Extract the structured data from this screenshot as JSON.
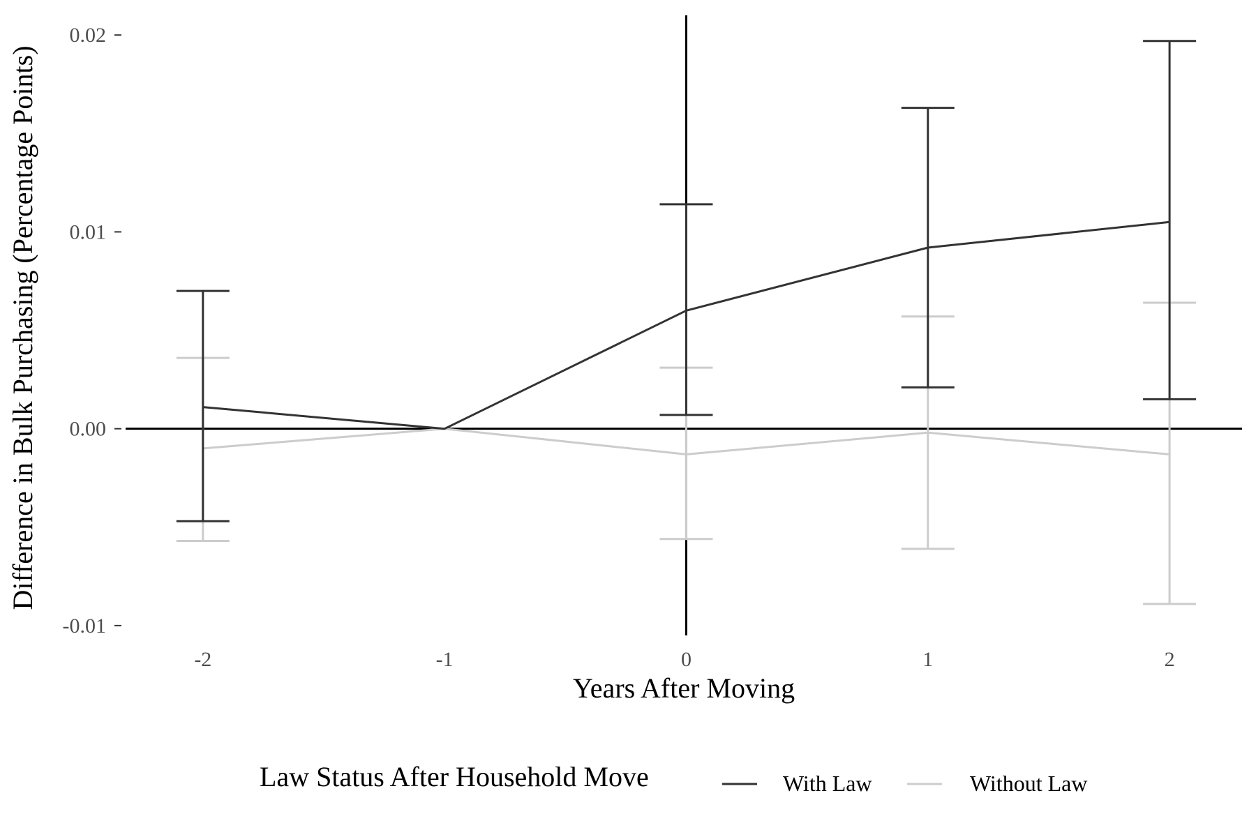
{
  "chart_data": {
    "type": "line",
    "title": "",
    "xlabel": "Years After Moving",
    "ylabel": "Difference in Bulk Purchasing (Percentage Points)",
    "x": [
      -2,
      -1,
      0,
      1,
      2
    ],
    "x_ticks": [
      "-2",
      "-1",
      "0",
      "1",
      "2"
    ],
    "xlim": [
      -2.32,
      2.3
    ],
    "y_ticks": [
      {
        "value": 0.02,
        "label": "0.02"
      },
      {
        "value": 0.01,
        "label": "0.01"
      },
      {
        "value": 0.0,
        "label": "0.00"
      },
      {
        "value": -0.01,
        "label": "-0.01"
      }
    ],
    "ylim": [
      -0.0105,
      0.021
    ],
    "grid": false,
    "reference_lines": {
      "horizontal_y": 0,
      "vertical_x": 0
    },
    "legend": {
      "title": "Law Status After Household Move",
      "position": "bottom"
    },
    "series": [
      {
        "name": "With Law",
        "color": "#333333",
        "values": [
          0.0011,
          0.0,
          0.006,
          0.0092,
          0.0105
        ],
        "ci_lower": [
          -0.0047,
          null,
          0.0007,
          0.0021,
          0.0015
        ],
        "ci_upper": [
          0.007,
          null,
          0.0114,
          0.0163,
          0.0197
        ]
      },
      {
        "name": "Without Law",
        "color": "#cccccc",
        "values": [
          -0.001,
          0.0,
          -0.0013,
          -0.0002,
          -0.0013
        ],
        "ci_lower": [
          -0.0057,
          null,
          -0.0056,
          -0.0061,
          -0.0089
        ],
        "ci_upper": [
          0.0036,
          null,
          0.0031,
          0.0057,
          0.0064
        ]
      }
    ]
  }
}
